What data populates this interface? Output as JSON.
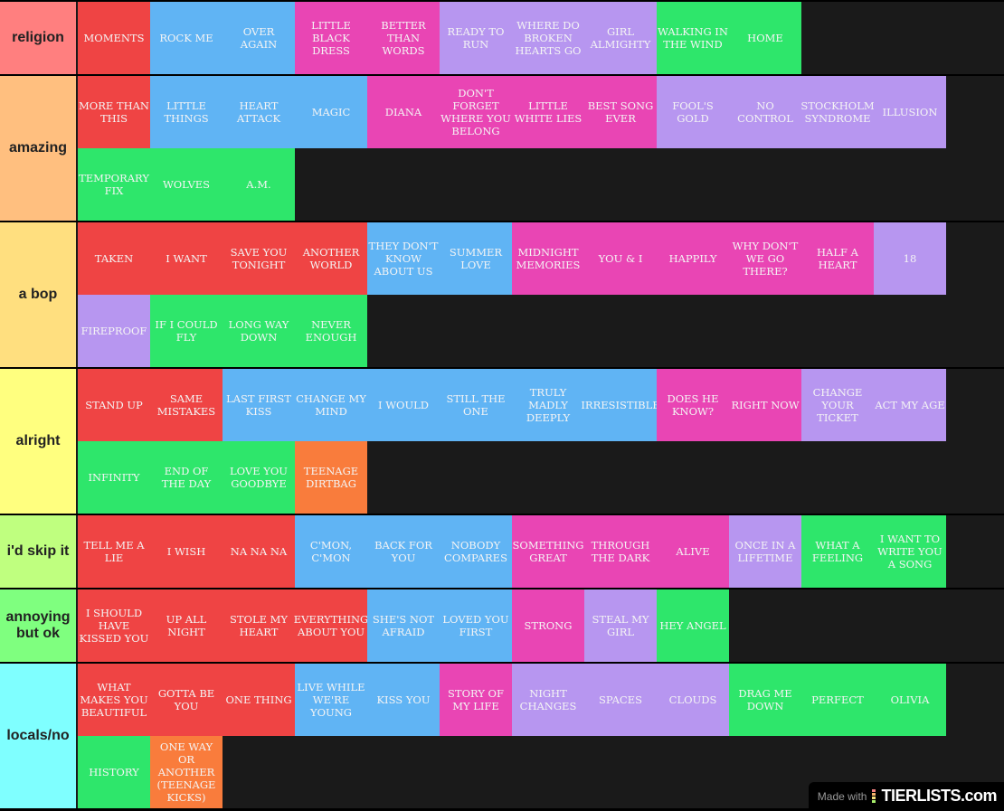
{
  "colors": {
    "red": "#ef4444",
    "blue": "#60b4f4",
    "pink": "#e945b4",
    "purple": "#b796f0",
    "green": "#2ee66b",
    "orange": "#f97c3c"
  },
  "tiers": [
    {
      "label": "religion",
      "color": "#ff7f7f",
      "items": [
        [
          "MOMENTS",
          "red"
        ],
        [
          "ROCK ME",
          "blue"
        ],
        [
          "OVER AGAIN",
          "blue"
        ],
        [
          "LITTLE BLACK DRESS",
          "pink"
        ],
        [
          "BETTER THAN WORDS",
          "pink"
        ],
        [
          "READY TO RUN",
          "purple"
        ],
        [
          "WHERE DO BROKEN HEARTS GO",
          "purple"
        ],
        [
          "GIRL ALMIGHTY",
          "purple"
        ],
        [
          "WALKING IN THE WIND",
          "green"
        ],
        [
          "HOME",
          "green"
        ]
      ]
    },
    {
      "label": "amazing",
      "color": "#ffbf7f",
      "items": [
        [
          "MORE THAN THIS",
          "red"
        ],
        [
          "LITTLE THINGS",
          "blue"
        ],
        [
          "HEART ATTACK",
          "blue"
        ],
        [
          "MAGIC",
          "blue"
        ],
        [
          "DIANA",
          "pink"
        ],
        [
          "DON'T FORGET WHERE YOU BELONG",
          "pink"
        ],
        [
          "LITTLE WHITE LIES",
          "pink"
        ],
        [
          "BEST SONG EVER",
          "pink"
        ],
        [
          "FOOL'S GOLD",
          "purple"
        ],
        [
          "NO CONTROL",
          "purple"
        ],
        [
          "STOCKHOLM SYNDROME",
          "purple"
        ],
        [
          "ILLUSION",
          "purple"
        ],
        [
          "TEMPORARY FIX",
          "green"
        ],
        [
          "WOLVES",
          "green"
        ],
        [
          "A.M.",
          "green"
        ]
      ]
    },
    {
      "label": "a bop",
      "color": "#ffdf7f",
      "items": [
        [
          "TAKEN",
          "red"
        ],
        [
          "I WANT",
          "red"
        ],
        [
          "SAVE YOU TONIGHT",
          "red"
        ],
        [
          "ANOTHER WORLD",
          "red"
        ],
        [
          "THEY DON'T KNOW ABOUT US",
          "blue"
        ],
        [
          "SUMMER LOVE",
          "blue"
        ],
        [
          "MIDNIGHT MEMORIES",
          "pink"
        ],
        [
          "YOU & I",
          "pink"
        ],
        [
          "HAPPILY",
          "pink"
        ],
        [
          "WHY DON'T WE GO THERE?",
          "pink"
        ],
        [
          "HALF A HEART",
          "pink"
        ],
        [
          "18",
          "purple"
        ],
        [
          "FIREPROOF",
          "purple"
        ],
        [
          "IF I COULD FLY",
          "green"
        ],
        [
          "LONG WAY DOWN",
          "green"
        ],
        [
          "NEVER ENOUGH",
          "green"
        ]
      ]
    },
    {
      "label": "alright",
      "color": "#ffff7f",
      "items": [
        [
          "STAND UP",
          "red"
        ],
        [
          "SAME MISTAKES",
          "red"
        ],
        [
          "LAST FIRST KISS",
          "blue"
        ],
        [
          "CHANGE MY MIND",
          "blue"
        ],
        [
          "I WOULD",
          "blue"
        ],
        [
          "STILL THE ONE",
          "blue"
        ],
        [
          "TRULY MADLY DEEPLY",
          "blue"
        ],
        [
          "IRRESISTIBLE",
          "blue"
        ],
        [
          "DOES HE KNOW?",
          "pink"
        ],
        [
          "RIGHT NOW",
          "pink"
        ],
        [
          "CHANGE YOUR TICKET",
          "purple"
        ],
        [
          "ACT MY AGE",
          "purple"
        ],
        [
          "INFINITY",
          "green"
        ],
        [
          "END OF THE DAY",
          "green"
        ],
        [
          "LOVE YOU GOODBYE",
          "green"
        ],
        [
          "TEENAGE DIRTBAG",
          "orange"
        ]
      ]
    },
    {
      "label": "i'd skip it",
      "color": "#bfff7f",
      "items": [
        [
          "TELL ME A LIE",
          "red"
        ],
        [
          "I WISH",
          "red"
        ],
        [
          "NA NA NA",
          "red"
        ],
        [
          "C'MON, C'MON",
          "blue"
        ],
        [
          "BACK FOR YOU",
          "blue"
        ],
        [
          "NOBODY COMPARES",
          "blue"
        ],
        [
          "SOMETHING GREAT",
          "pink"
        ],
        [
          "THROUGH THE DARK",
          "pink"
        ],
        [
          "ALIVE",
          "pink"
        ],
        [
          "ONCE IN A LIFETIME",
          "purple"
        ],
        [
          "WHAT A FEELING",
          "green"
        ],
        [
          "I WANT TO WRITE YOU A SONG",
          "green"
        ]
      ]
    },
    {
      "label": "annoying but ok",
      "color": "#7fff7f",
      "items": [
        [
          "I SHOULD HAVE KISSED YOU",
          "red"
        ],
        [
          "UP ALL NIGHT",
          "red"
        ],
        [
          "STOLE MY HEART",
          "red"
        ],
        [
          "EVERYTHING ABOUT YOU",
          "red"
        ],
        [
          "SHE'S NOT AFRAID",
          "blue"
        ],
        [
          "LOVED YOU FIRST",
          "blue"
        ],
        [
          "STRONG",
          "pink"
        ],
        [
          "STEAL MY GIRL",
          "purple"
        ],
        [
          "HEY ANGEL",
          "green"
        ]
      ]
    },
    {
      "label": "locals/no",
      "color": "#7fffff",
      "items": [
        [
          "WHAT MAKES YOU BEAUTIFUL",
          "red"
        ],
        [
          "GOTTA BE YOU",
          "red"
        ],
        [
          "ONE THING",
          "red"
        ],
        [
          "LIVE WHILE WE'RE YOUNG",
          "blue"
        ],
        [
          "KISS YOU",
          "blue"
        ],
        [
          "STORY OF MY LIFE",
          "pink"
        ],
        [
          "NIGHT CHANGES",
          "purple"
        ],
        [
          "SPACES",
          "purple"
        ],
        [
          "CLOUDS",
          "purple"
        ],
        [
          "DRAG ME DOWN",
          "green"
        ],
        [
          "PERFECT",
          "green"
        ],
        [
          "OLIVIA",
          "green"
        ],
        [
          "HISTORY",
          "green"
        ],
        [
          "ONE WAY OR ANOTHER (TEENAGE KICKS)",
          "orange"
        ]
      ]
    }
  ],
  "watermark": {
    "prefix": "Made with",
    "brand": "TIERLISTS.com"
  }
}
